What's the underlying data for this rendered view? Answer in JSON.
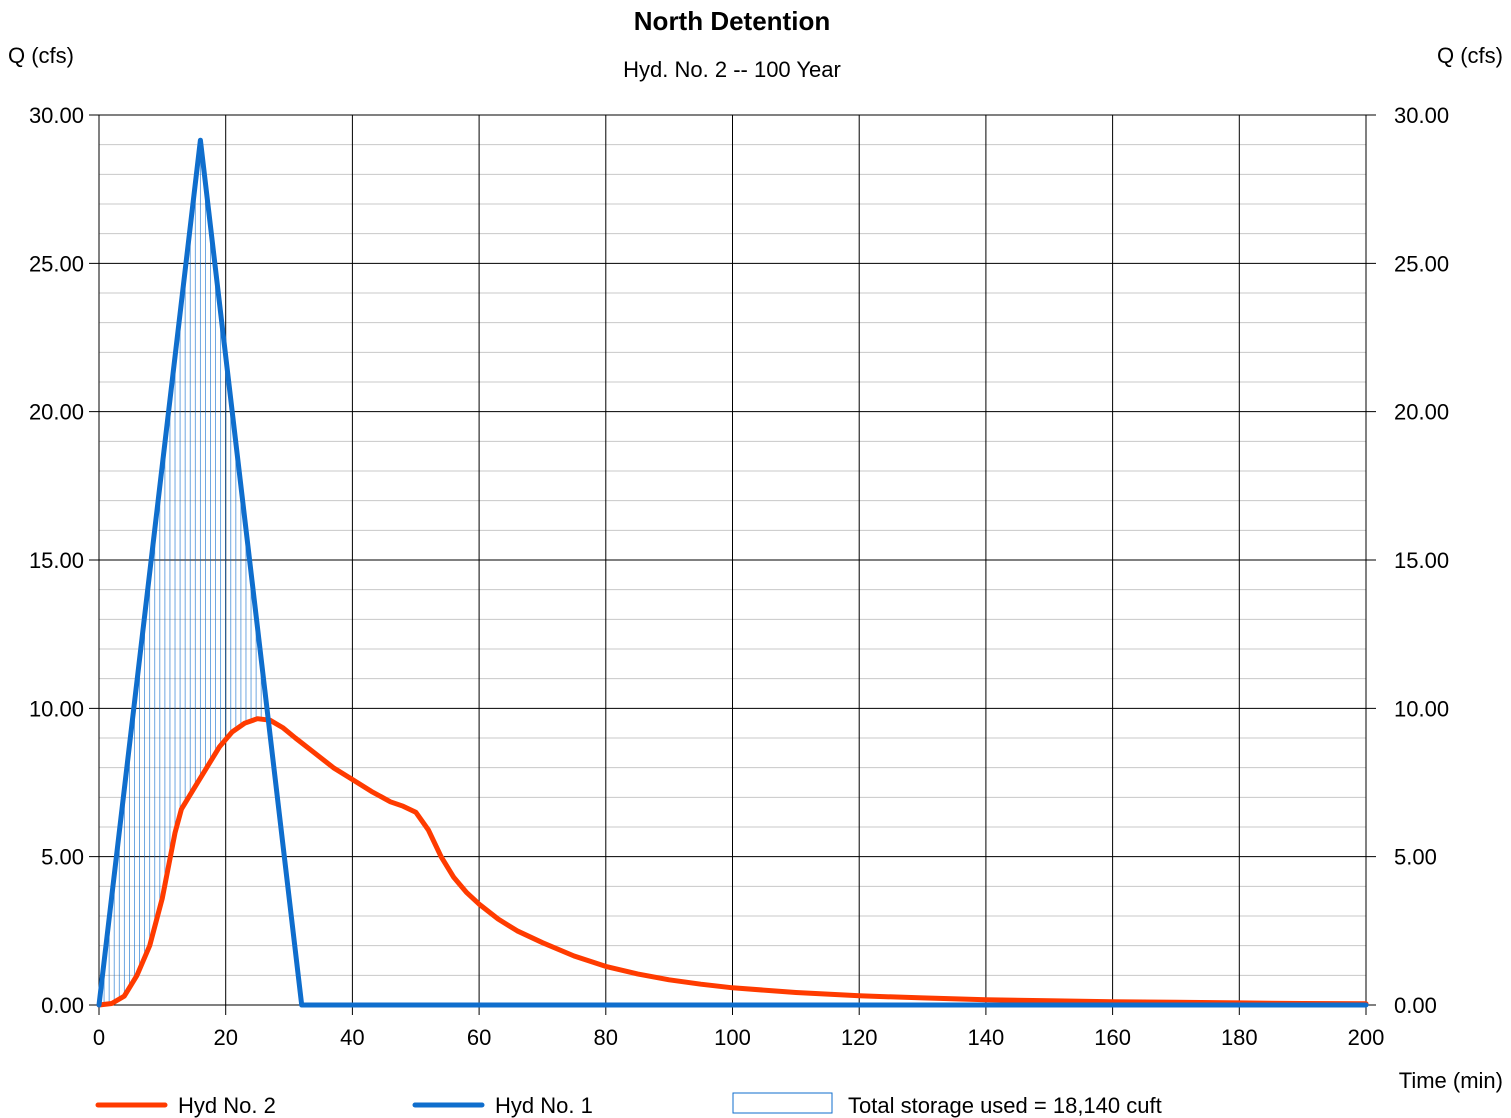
{
  "chart_data": {
    "type": "line",
    "title": "North Detention",
    "subtitle": "Hyd. No. 2 -- 100 Year",
    "ylabel_left": "Q (cfs)",
    "ylabel_right": "Q (cfs)",
    "xlabel": "Time (min)",
    "xlim": [
      0,
      200
    ],
    "ylim": [
      0,
      30
    ],
    "x_ticks": [
      "0",
      "20",
      "40",
      "60",
      "80",
      "100",
      "120",
      "140",
      "160",
      "180",
      "200"
    ],
    "y_ticks": [
      "0.00",
      "5.00",
      "10.00",
      "15.00",
      "20.00",
      "25.00",
      "30.00"
    ],
    "grid": true,
    "legend_position": "bottom",
    "series": [
      {
        "name": "Hyd No. 2",
        "color": "#ff3b00",
        "x": [
          0,
          2,
          4,
          6,
          8,
          10,
          12,
          13,
          15,
          17,
          19,
          21,
          23,
          25,
          27,
          29,
          31,
          34,
          37,
          40,
          43,
          46,
          48,
          50,
          52,
          54,
          56,
          58,
          60,
          63,
          66,
          70,
          75,
          80,
          85,
          90,
          95,
          100,
          110,
          120,
          130,
          140,
          150,
          160,
          170,
          180,
          190,
          200
        ],
        "y": [
          0.0,
          0.05,
          0.3,
          1.0,
          2.0,
          3.6,
          5.8,
          6.6,
          7.3,
          8.0,
          8.7,
          9.2,
          9.5,
          9.65,
          9.6,
          9.35,
          9.0,
          8.5,
          8.0,
          7.6,
          7.2,
          6.85,
          6.7,
          6.5,
          5.9,
          5.0,
          4.3,
          3.8,
          3.4,
          2.9,
          2.5,
          2.1,
          1.65,
          1.3,
          1.05,
          0.85,
          0.7,
          0.58,
          0.42,
          0.31,
          0.24,
          0.18,
          0.14,
          0.11,
          0.09,
          0.07,
          0.05,
          0.04
        ]
      },
      {
        "name": "Hyd No. 1",
        "color": "#0f6ecd",
        "x": [
          0,
          16,
          32,
          200
        ],
        "y": [
          0.0,
          29.15,
          0.0,
          0.0
        ]
      }
    ],
    "storage": {
      "label": "Total storage used = 18,140 cuft",
      "color": "#0f6ecd"
    }
  }
}
